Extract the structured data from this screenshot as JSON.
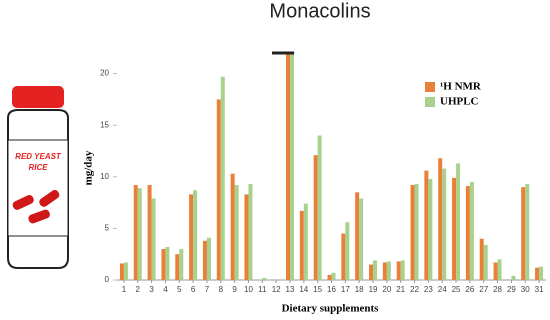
{
  "chart_data": {
    "type": "bar",
    "title": "Monacolins",
    "xlabel": "Dietary supplements",
    "ylabel": "mg/day",
    "categories": [
      "1",
      "2",
      "3",
      "4",
      "5",
      "6",
      "7",
      "8",
      "9",
      "10",
      "11",
      "12",
      "13",
      "14",
      "15",
      "16",
      "17",
      "18",
      "19",
      "20",
      "21",
      "22",
      "23",
      "24",
      "25",
      "26",
      "27",
      "28",
      "29",
      "30",
      "31"
    ],
    "series": [
      {
        "name": "¹H NMR",
        "color": "#e8803a",
        "values": [
          1.6,
          9.2,
          9.2,
          3.0,
          2.5,
          8.3,
          3.8,
          17.5,
          10.3,
          8.3,
          0,
          0,
          22,
          6.7,
          12.1,
          0.5,
          4.5,
          8.5,
          1.5,
          1.7,
          1.8,
          9.2,
          10.6,
          11.8,
          9.9,
          9.1,
          4.0,
          1.7,
          0,
          9.0,
          1.2
        ]
      },
      {
        "name": "UHPLC",
        "color": "#a9d18e",
        "values": [
          1.7,
          8.9,
          7.9,
          3.2,
          3.0,
          8.7,
          4.1,
          19.7,
          9.2,
          9.3,
          0.2,
          0,
          22,
          7.4,
          14.0,
          0.7,
          5.6,
          7.9,
          1.9,
          1.8,
          1.9,
          9.3,
          9.8,
          10.8,
          11.3,
          9.5,
          3.4,
          2.0,
          0.4,
          9.3,
          1.3
        ]
      }
    ],
    "ylim": [
      0,
      22
    ],
    "yticks": [
      0,
      5,
      10,
      15,
      20
    ],
    "legend": "upper-right"
  },
  "illustration": {
    "label_lines": [
      "RED YEAST",
      "RICE"
    ]
  }
}
